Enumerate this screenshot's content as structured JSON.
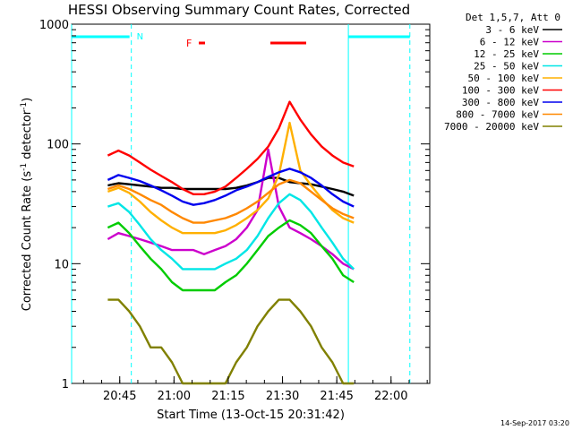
{
  "chart_data": {
    "type": "line",
    "title": "HESSI Observing Summary Count Rates, Corrected",
    "xlabel": "Start Time (13-Oct-15 20:31:42)",
    "ylabel_main": "Corrected Count Rate (s",
    "ylabel_sup1": "-1",
    "ylabel_mid": " detector",
    "ylabel_sup2": "-1",
    "ylabel_end": ")",
    "x_start_minutes": 0,
    "x_end_minutes": 99,
    "ylim": [
      1,
      1000
    ],
    "y_scale": "log",
    "x_ticks": [
      {
        "m": 13.3,
        "label": "20:45"
      },
      {
        "m": 28.3,
        "label": "21:00"
      },
      {
        "m": 43.3,
        "label": "21:15"
      },
      {
        "m": 58.3,
        "label": "21:30"
      },
      {
        "m": 73.3,
        "label": "21:45"
      },
      {
        "m": 88.3,
        "label": "22:00"
      }
    ],
    "y_ticks": [
      {
        "v": 1,
        "label": "1"
      },
      {
        "v": 10,
        "label": "10"
      },
      {
        "v": 100,
        "label": "100"
      },
      {
        "v": 1000,
        "label": "1000"
      }
    ],
    "legend_header": "Det 1,5,7, Att 0",
    "legend_placement": "right",
    "series": [
      {
        "name": "3 - 6 keV",
        "color": "#000000",
        "values": [
          45,
          47,
          46,
          45,
          44,
          43,
          43,
          42,
          42,
          42,
          42,
          42,
          43,
          45,
          48,
          52,
          52,
          48,
          47,
          46,
          44,
          42,
          40,
          37
        ]
      },
      {
        "name": "6 - 12 keV",
        "color": "#cc00cc",
        "values": [
          16,
          18,
          17,
          16,
          15,
          14,
          13,
          13,
          13,
          12,
          13,
          14,
          16,
          20,
          28,
          90,
          30,
          20,
          18,
          16,
          14,
          12,
          10,
          9
        ]
      },
      {
        "name": "12 - 25 keV",
        "color": "#00cc00",
        "values": [
          20,
          22,
          18,
          14,
          11,
          9,
          7,
          6,
          6,
          6,
          6,
          7,
          8,
          10,
          13,
          17,
          20,
          23,
          21,
          18,
          14,
          11,
          8,
          7
        ]
      },
      {
        "name": "25 - 50 keV",
        "color": "#00e6e6",
        "values": [
          30,
          32,
          27,
          21,
          16,
          13,
          11,
          9,
          9,
          9,
          9,
          10,
          11,
          13,
          17,
          24,
          32,
          38,
          34,
          27,
          20,
          15,
          11,
          9
        ]
      },
      {
        "name": "50 - 100 keV",
        "color": "#ffb000",
        "values": [
          40,
          43,
          39,
          33,
          27,
          23,
          20,
          18,
          18,
          18,
          18,
          19,
          21,
          24,
          28,
          35,
          55,
          150,
          60,
          45,
          35,
          28,
          24,
          22
        ]
      },
      {
        "name": "100 - 300 keV",
        "color": "#ff0000",
        "values": [
          80,
          88,
          80,
          70,
          61,
          54,
          48,
          42,
          38,
          38,
          40,
          44,
          52,
          62,
          75,
          95,
          135,
          225,
          160,
          120,
          95,
          80,
          70,
          65
        ]
      },
      {
        "name": "300 - 800 keV",
        "color": "#0000ee",
        "values": [
          50,
          55,
          52,
          49,
          45,
          41,
          37,
          33,
          31,
          32,
          34,
          37,
          41,
          44,
          48,
          53,
          58,
          62,
          58,
          52,
          45,
          38,
          33,
          30
        ]
      },
      {
        "name": "800 - 7000 keV",
        "color": "#ff8800",
        "values": [
          42,
          45,
          42,
          38,
          34,
          31,
          27,
          24,
          22,
          22,
          23,
          24,
          26,
          29,
          33,
          39,
          46,
          50,
          47,
          40,
          34,
          29,
          26,
          24
        ]
      },
      {
        "name": "7000 - 20000 keV",
        "color": "#808000",
        "values": [
          5,
          5,
          4,
          3,
          2,
          2,
          1.5,
          1,
          1,
          1,
          1,
          1,
          1.5,
          2,
          3,
          4,
          5,
          5,
          4,
          3,
          2,
          1.5,
          1,
          1
        ]
      }
    ],
    "series_x_start_minutes": 10,
    "series_x_end_minutes": 78,
    "vertical_markers_minutes": [
      0,
      16.5,
      76.5,
      93.5
    ],
    "flag_label_n": "N",
    "flag_label_f": "F",
    "grid": false
  },
  "footer": {
    "timestamp": "14-Sep-2017 03:20"
  },
  "colors": {
    "frame": "#000000",
    "cyan_markers": "#00ffff",
    "flag_red": "#ff0000"
  }
}
